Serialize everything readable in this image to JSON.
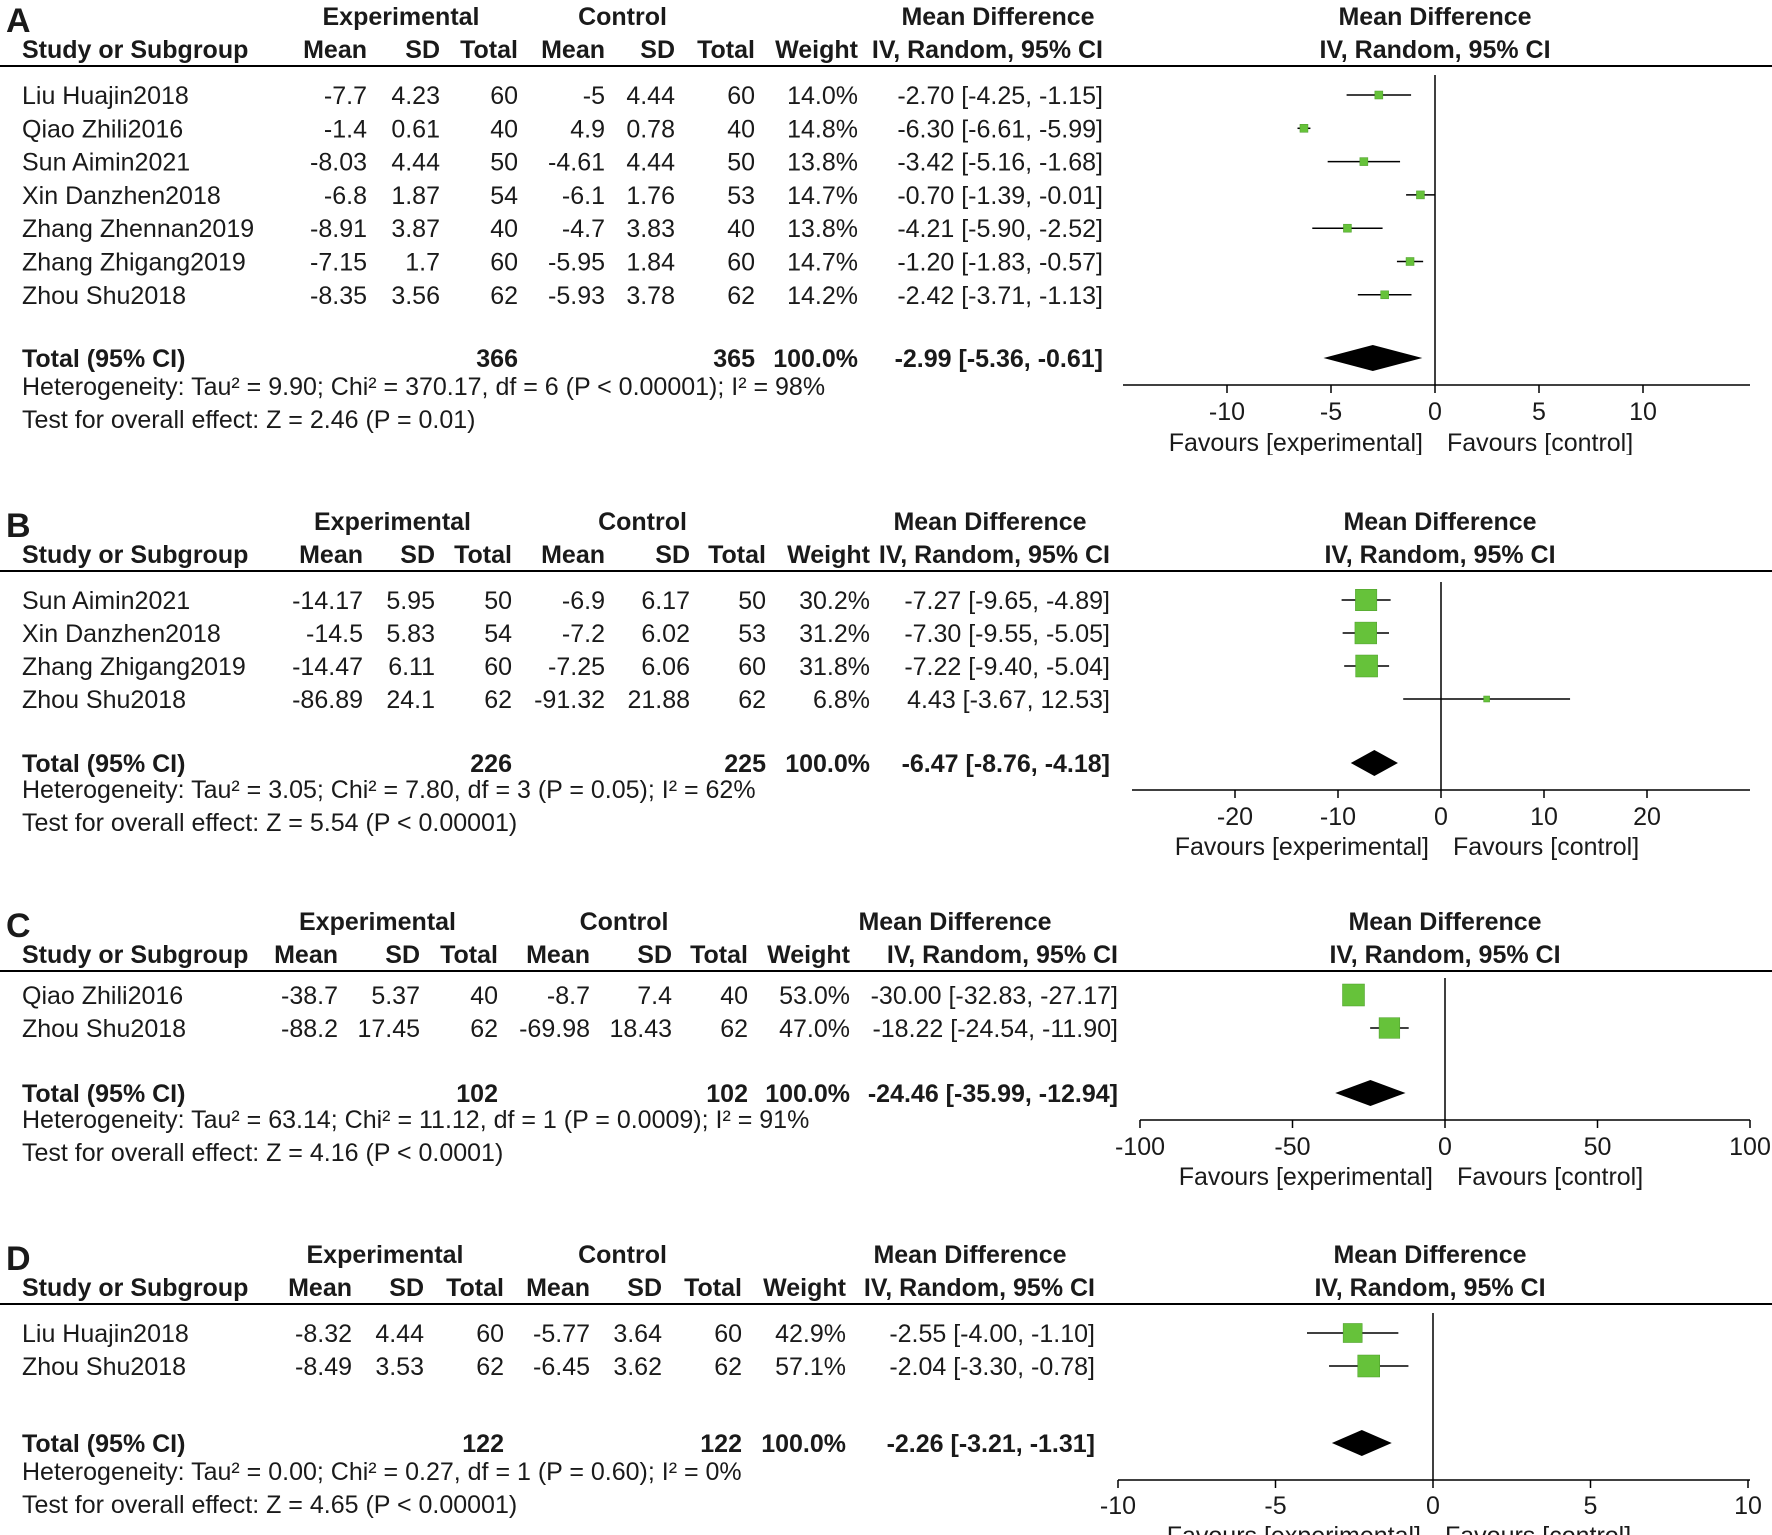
{
  "chart_data": [
    {
      "type": "forest",
      "panel_label": "A",
      "header": {
        "group1": "Experimental",
        "group2": "Control",
        "effect": "Mean Difference",
        "study_col": "Study or Subgroup",
        "mean": "Mean",
        "sd": "SD",
        "total": "Total",
        "weight": "Weight",
        "ci_col": "IV, Random, 95% CI",
        "plot_title": "Mean Difference",
        "plot_subtitle": "IV, Random, 95% CI"
      },
      "studies": [
        {
          "name": "Liu Huajin2018",
          "m1": "-7.7",
          "sd1": "4.23",
          "n1": "60",
          "m2": "-5",
          "sd2": "4.44",
          "n2": "60",
          "weight": "14.0%",
          "ci": "-2.70 [-4.25, -1.15]",
          "md": -2.7,
          "lo": -4.25,
          "hi": -1.15,
          "w": 14.0
        },
        {
          "name": "Qiao Zhili2016",
          "m1": "-1.4",
          "sd1": "0.61",
          "n1": "40",
          "m2": "4.9",
          "sd2": "0.78",
          "n2": "40",
          "weight": "14.8%",
          "ci": "-6.30 [-6.61, -5.99]",
          "md": -6.3,
          "lo": -6.61,
          "hi": -5.99,
          "w": 14.8
        },
        {
          "name": "Sun Aimin2021",
          "m1": "-8.03",
          "sd1": "4.44",
          "n1": "50",
          "m2": "-4.61",
          "sd2": "4.44",
          "n2": "50",
          "weight": "13.8%",
          "ci": "-3.42 [-5.16, -1.68]",
          "md": -3.42,
          "lo": -5.16,
          "hi": -1.68,
          "w": 13.8
        },
        {
          "name": "Xin Danzhen2018",
          "m1": "-6.8",
          "sd1": "1.87",
          "n1": "54",
          "m2": "-6.1",
          "sd2": "1.76",
          "n2": "53",
          "weight": "14.7%",
          "ci": "-0.70 [-1.39, -0.01]",
          "md": -0.7,
          "lo": -1.39,
          "hi": -0.01,
          "w": 14.7
        },
        {
          "name": "Zhang Zhennan2019",
          "m1": "-8.91",
          "sd1": "3.87",
          "n1": "40",
          "m2": "-4.7",
          "sd2": "3.83",
          "n2": "40",
          "weight": "13.8%",
          "ci": "-4.21 [-5.90, -2.52]",
          "md": -4.21,
          "lo": -5.9,
          "hi": -2.52,
          "w": 13.8
        },
        {
          "name": "Zhang Zhigang2019",
          "m1": "-7.15",
          "sd1": "1.7",
          "n1": "60",
          "m2": "-5.95",
          "sd2": "1.84",
          "n2": "60",
          "weight": "14.7%",
          "ci": "-1.20 [-1.83, -0.57]",
          "md": -1.2,
          "lo": -1.83,
          "hi": -0.57,
          "w": 14.7
        },
        {
          "name": "Zhou Shu2018",
          "m1": "-8.35",
          "sd1": "3.56",
          "n1": "62",
          "m2": "-5.93",
          "sd2": "3.78",
          "n2": "62",
          "weight": "14.2%",
          "ci": "-2.42 [-3.71, -1.13]",
          "md": -2.42,
          "lo": -3.71,
          "hi": -1.13,
          "w": 14.2
        }
      ],
      "total": {
        "label": "Total (95% CI)",
        "n1": "366",
        "n2": "365",
        "weight": "100.0%",
        "ci": "-2.99 [-5.36, -0.61]",
        "md": -2.99,
        "lo": -5.36,
        "hi": -0.61
      },
      "heterogeneity": "Heterogeneity: Tau² = 9.90; Chi² = 370.17, df = 6 (P < 0.00001); I² = 98%",
      "overall_effect": "Test for overall effect: Z = 2.46 (P = 0.01)",
      "axis": {
        "min": -15,
        "max": 15,
        "ticks": [
          -10,
          -5,
          0,
          5,
          10
        ],
        "tick_labels": [
          "-10",
          "-5",
          "0",
          "5",
          "10"
        ],
        "left_label": "Favours [experimental]",
        "right_label": "Favours [control]"
      }
    },
    {
      "type": "forest",
      "panel_label": "B",
      "header": {
        "group1": "Experimental",
        "group2": "Control",
        "effect": "Mean Difference",
        "study_col": "Study or Subgroup",
        "mean": "Mean",
        "sd": "SD",
        "total": "Total",
        "weight": "Weight",
        "ci_col": "IV, Random, 95% CI",
        "plot_title": "Mean Difference",
        "plot_subtitle": "IV, Random, 95% CI"
      },
      "studies": [
        {
          "name": "Sun Aimin2021",
          "m1": "-14.17",
          "sd1": "5.95",
          "n1": "50",
          "m2": "-6.9",
          "sd2": "6.17",
          "n2": "50",
          "weight": "30.2%",
          "ci": "-7.27 [-9.65, -4.89]",
          "md": -7.27,
          "lo": -9.65,
          "hi": -4.89,
          "w": 30.2
        },
        {
          "name": "Xin Danzhen2018",
          "m1": "-14.5",
          "sd1": "5.83",
          "n1": "54",
          "m2": "-7.2",
          "sd2": "6.02",
          "n2": "53",
          "weight": "31.2%",
          "ci": "-7.30 [-9.55, -5.05]",
          "md": -7.3,
          "lo": -9.55,
          "hi": -5.05,
          "w": 31.2
        },
        {
          "name": "Zhang Zhigang2019",
          "m1": "-14.47",
          "sd1": "6.11",
          "n1": "60",
          "m2": "-7.25",
          "sd2": "6.06",
          "n2": "60",
          "weight": "31.8%",
          "ci": "-7.22 [-9.40, -5.04]",
          "md": -7.22,
          "lo": -9.4,
          "hi": -5.04,
          "w": 31.8
        },
        {
          "name": "Zhou Shu2018",
          "m1": "-86.89",
          "sd1": "24.1",
          "n1": "62",
          "m2": "-91.32",
          "sd2": "21.88",
          "n2": "62",
          "weight": "6.8%",
          "ci": "4.43 [-3.67, 12.53]",
          "md": 4.43,
          "lo": -3.67,
          "hi": 12.53,
          "w": 6.8
        }
      ],
      "total": {
        "label": "Total (95% CI)",
        "n1": "226",
        "n2": "225",
        "weight": "100.0%",
        "ci": "-6.47 [-8.76, -4.18]",
        "md": -6.47,
        "lo": -8.76,
        "hi": -4.18
      },
      "heterogeneity": "Heterogeneity: Tau² = 3.05; Chi² = 7.80, df = 3 (P = 0.05); I² = 62%",
      "overall_effect": "Test for overall effect: Z = 5.54 (P < 0.00001)",
      "axis": {
        "min": -30,
        "max": 30,
        "ticks": [
          -20,
          -10,
          0,
          10,
          20
        ],
        "tick_labels": [
          "-20",
          "-10",
          "0",
          "10",
          "20"
        ],
        "left_label": "Favours [experimental]",
        "right_label": "Favours [control]"
      }
    },
    {
      "type": "forest",
      "panel_label": "C",
      "header": {
        "group1": "Experimental",
        "group2": "Control",
        "effect": "Mean Difference",
        "study_col": "Study or Subgroup",
        "mean": "Mean",
        "sd": "SD",
        "total": "Total",
        "weight": "Weight",
        "ci_col": "IV, Random, 95% CI",
        "plot_title": "Mean Difference",
        "plot_subtitle": "IV, Random, 95% CI"
      },
      "studies": [
        {
          "name": "Qiao Zhili2016",
          "m1": "-38.7",
          "sd1": "5.37",
          "n1": "40",
          "m2": "-8.7",
          "sd2": "7.4",
          "n2": "40",
          "weight": "53.0%",
          "ci": "-30.00 [-32.83, -27.17]",
          "md": -30.0,
          "lo": -32.83,
          "hi": -27.17,
          "w": 53.0
        },
        {
          "name": "Zhou Shu2018",
          "m1": "-88.2",
          "sd1": "17.45",
          "n1": "62",
          "m2": "-69.98",
          "sd2": "18.43",
          "n2": "62",
          "weight": "47.0%",
          "ci": "-18.22 [-24.54, -11.90]",
          "md": -18.22,
          "lo": -24.54,
          "hi": -11.9,
          "w": 47.0
        }
      ],
      "total": {
        "label": "Total (95% CI)",
        "n1": "102",
        "n2": "102",
        "weight": "100.0%",
        "ci": "-24.46 [-35.99, -12.94]",
        "md": -24.46,
        "lo": -35.99,
        "hi": -12.94
      },
      "heterogeneity": "Heterogeneity: Tau² = 63.14; Chi² = 11.12, df = 1 (P = 0.0009); I² = 91%",
      "overall_effect": "Test for overall effect: Z = 4.16 (P < 0.0001)",
      "axis": {
        "min": -100,
        "max": 100,
        "ticks": [
          -100,
          -50,
          0,
          50,
          100
        ],
        "tick_labels": [
          "-100",
          "-50",
          "0",
          "50",
          "100"
        ],
        "left_label": "Favours [experimental]",
        "right_label": "Favours [control]"
      }
    },
    {
      "type": "forest",
      "panel_label": "D",
      "header": {
        "group1": "Experimental",
        "group2": "Control",
        "effect": "Mean Difference",
        "study_col": "Study or Subgroup",
        "mean": "Mean",
        "sd": "SD",
        "total": "Total",
        "weight": "Weight",
        "ci_col": "IV, Random, 95% CI",
        "plot_title": "Mean Difference",
        "plot_subtitle": "IV, Random, 95% CI"
      },
      "studies": [
        {
          "name": "Liu Huajin2018",
          "m1": "-8.32",
          "sd1": "4.44",
          "n1": "60",
          "m2": "-5.77",
          "sd2": "3.64",
          "n2": "60",
          "weight": "42.9%",
          "ci": "-2.55 [-4.00, -1.10]",
          "md": -2.55,
          "lo": -4.0,
          "hi": -1.1,
          "w": 42.9
        },
        {
          "name": "Zhou Shu2018",
          "m1": "-8.49",
          "sd1": "3.53",
          "n1": "62",
          "m2": "-6.45",
          "sd2": "3.62",
          "n2": "62",
          "weight": "57.1%",
          "ci": "-2.04 [-3.30, -0.78]",
          "md": -2.04,
          "lo": -3.3,
          "hi": -0.78,
          "w": 57.1
        }
      ],
      "total": {
        "label": "Total (95% CI)",
        "n1": "122",
        "n2": "122",
        "weight": "100.0%",
        "ci": "-2.26 [-3.21, -1.31]",
        "md": -2.26,
        "lo": -3.21,
        "hi": -1.31
      },
      "heterogeneity": "Heterogeneity: Tau² = 0.00; Chi² = 0.27, df = 1 (P = 0.60); I² = 0%",
      "overall_effect": "Test for overall effect: Z = 4.65 (P < 0.00001)",
      "axis": {
        "min": -10,
        "max": 10,
        "ticks": [
          -10,
          -5,
          0,
          5,
          10
        ],
        "tick_labels": [
          "-10",
          "-5",
          "0",
          "5",
          "10"
        ],
        "left_label": "Favours [experimental]",
        "right_label": "Favours [control]"
      }
    }
  ],
  "colors": {
    "marker": "#66c23a",
    "marker_border": "#4a9a28",
    "diamond": "#000000",
    "line": "#000000",
    "text": "#1a1a1a"
  }
}
